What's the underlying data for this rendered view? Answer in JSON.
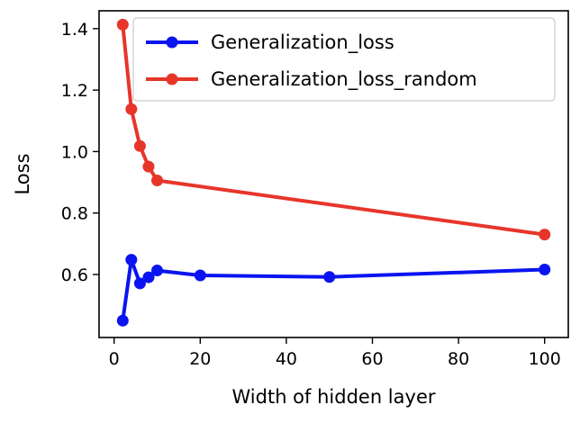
{
  "chart_data": {
    "type": "line",
    "xlabel": "Width of hidden layer",
    "ylabel": "Loss",
    "xlim": [
      -3.5,
      105.5
    ],
    "ylim": [
      0.395,
      1.458
    ],
    "xticks": [
      0,
      20,
      40,
      60,
      80,
      100
    ],
    "yticks": [
      0.6,
      0.8,
      1.0,
      1.2,
      1.4
    ],
    "xtick_labels": [
      "0",
      "20",
      "40",
      "60",
      "80",
      "100"
    ],
    "ytick_labels": [
      "0.6",
      "0.8",
      "1.0",
      "1.2",
      "1.4"
    ],
    "grid": false,
    "legend_position": "top-right",
    "series": [
      {
        "name": "Generalization_loss",
        "color": "#0a14f0",
        "x": [
          2,
          4,
          6,
          8,
          10,
          20,
          50,
          100
        ],
        "y": [
          0.45,
          0.648,
          0.571,
          0.591,
          0.613,
          0.597,
          0.592,
          0.616
        ]
      },
      {
        "name": "Generalization_loss_random",
        "color": "#e8352a",
        "x": [
          2,
          4,
          6,
          8,
          10,
          100
        ],
        "y": [
          1.413,
          1.138,
          1.018,
          0.951,
          0.906,
          0.73
        ]
      }
    ]
  }
}
